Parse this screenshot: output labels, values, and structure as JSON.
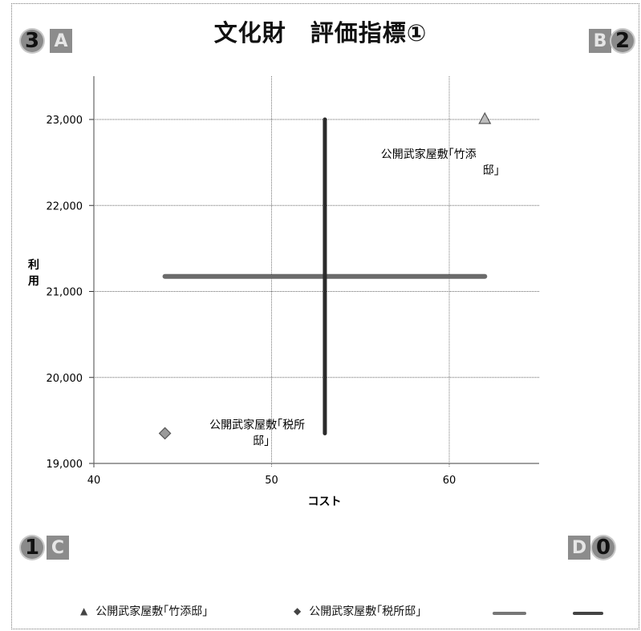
{
  "title": "文化財　評価指標①",
  "quadrant_labels": {
    "top_left": {
      "number": "3",
      "letter": "A"
    },
    "top_right": {
      "letter": "B",
      "number": "2"
    },
    "bottom_left": {
      "number": "1",
      "letter": "C"
    },
    "bottom_right": {
      "letter": "D",
      "number": "0"
    }
  },
  "chart_data": {
    "type": "scatter",
    "title": "文化財　評価指標①",
    "xlabel": "コスト",
    "ylabel": "利用",
    "xlim": [
      40,
      65
    ],
    "ylim": [
      19000,
      23500
    ],
    "x_ticks": [
      40,
      50,
      60
    ],
    "y_ticks": [
      19000,
      20000,
      21000,
      22000,
      23000
    ],
    "y_tick_labels": [
      "19,000",
      "20,000",
      "21,000",
      "22,000",
      "23,000"
    ],
    "grid": true,
    "legend_position": "bottom",
    "series": [
      {
        "name": "公開武家屋敷｢竹添邸｣",
        "marker": "triangle",
        "points": [
          {
            "x": 62,
            "y": 23000
          }
        ],
        "label": [
          "公開武家屋敷｢竹添",
          "邸｣"
        ]
      },
      {
        "name": "公開武家屋敷｢税所邸｣",
        "marker": "diamond",
        "points": [
          {
            "x": 44,
            "y": 19350
          }
        ],
        "label": [
          "公開武家屋敷｢税所",
          "邸｣"
        ]
      },
      {
        "name": "",
        "type": "line",
        "style": "mean-horizontal",
        "points": [
          {
            "x": 44,
            "y": 21175
          },
          {
            "x": 62,
            "y": 21175
          }
        ]
      },
      {
        "name": "",
        "type": "line",
        "style": "mean-vertical",
        "points": [
          {
            "x": 53,
            "y": 19350
          },
          {
            "x": 53,
            "y": 23000
          }
        ]
      }
    ]
  },
  "colors": {
    "horizontal_line": "#6b6b6b",
    "vertical_line": "#2a2a2a",
    "marker": "#555555",
    "grid": "#666666"
  }
}
